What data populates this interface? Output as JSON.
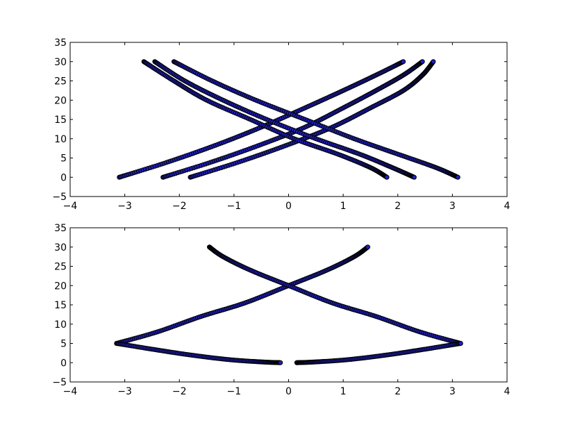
{
  "chart_data": [
    {
      "type": "scatter",
      "xlim": [
        -4,
        4
      ],
      "ylim": [
        -5,
        35
      ],
      "xticks": [
        "−4",
        "−3",
        "−2",
        "−1",
        "0",
        "1",
        "2",
        "3",
        "4"
      ],
      "yticks": [
        "−5",
        "0",
        "5",
        "10",
        "15",
        "20",
        "25",
        "30",
        "35"
      ],
      "grid": false,
      "marker_color": "#1f1fbf",
      "edge_color": "#000000",
      "series": [
        {
          "x": [
            -3.1,
            -2.2,
            -1.3,
            -0.5,
            0.3,
            1.0,
            1.6,
            2.1
          ],
          "y": [
            0,
            4,
            8.5,
            13,
            18,
            22.5,
            26.5,
            30
          ]
        },
        {
          "x": [
            -2.3,
            -1.4,
            -0.5,
            0.3,
            1.0,
            1.6,
            2.1,
            2.45
          ],
          "y": [
            0,
            4,
            8.5,
            13,
            18,
            22.5,
            26.5,
            30
          ]
        },
        {
          "x": [
            -1.8,
            -0.9,
            0.0,
            0.8,
            1.5,
            2.1,
            2.45,
            2.65
          ],
          "y": [
            0,
            4,
            8.5,
            13,
            18,
            22.5,
            26.5,
            30
          ]
        },
        {
          "x": [
            -2.65,
            -2.1,
            -1.5,
            -0.7,
            0.1,
            0.9,
            1.5,
            1.8
          ],
          "y": [
            30,
            25,
            20,
            15,
            10,
            6,
            2.5,
            0
          ]
        },
        {
          "x": [
            -2.45,
            -1.9,
            -1.2,
            -0.4,
            0.5,
            1.3,
            1.9,
            2.3
          ],
          "y": [
            30,
            25,
            20,
            15,
            10,
            6,
            2.5,
            0
          ]
        },
        {
          "x": [
            -2.1,
            -1.4,
            -0.6,
            0.3,
            1.2,
            2.0,
            2.7,
            3.1
          ],
          "y": [
            30,
            25,
            20,
            15,
            10,
            6,
            2.5,
            0
          ]
        }
      ]
    },
    {
      "type": "scatter",
      "xlim": [
        -4,
        4
      ],
      "ylim": [
        -5,
        35
      ],
      "xticks": [
        "−4",
        "−3",
        "−2",
        "−1",
        "0",
        "1",
        "2",
        "3",
        "4"
      ],
      "yticks": [
        "−5",
        "0",
        "5",
        "10",
        "15",
        "20",
        "25",
        "30",
        "35"
      ],
      "grid": false,
      "marker_color": "#1f1fbf",
      "edge_color": "#000000",
      "series": [
        {
          "x": [
            -3.15,
            -2.4,
            -1.6,
            -0.8,
            0.0,
            0.7,
            1.2,
            1.45
          ],
          "y": [
            5,
            8,
            12,
            15.5,
            20,
            24,
            27.5,
            30
          ]
        },
        {
          "x": [
            -1.45,
            -1.2,
            -0.7,
            0.0,
            0.8,
            1.6,
            2.4,
            3.15
          ],
          "y": [
            30,
            27.5,
            24,
            20,
            15.5,
            12,
            8,
            5
          ]
        },
        {
          "x": [
            -3.15,
            -2.5,
            -1.8,
            -1.1,
            -0.5,
            -0.15
          ],
          "y": [
            5,
            3.5,
            2.0,
            0.8,
            0.2,
            0
          ]
        },
        {
          "x": [
            0.15,
            0.5,
            1.1,
            1.8,
            2.5,
            3.15
          ],
          "y": [
            0,
            0.2,
            0.8,
            2.0,
            3.5,
            5
          ]
        }
      ]
    }
  ]
}
